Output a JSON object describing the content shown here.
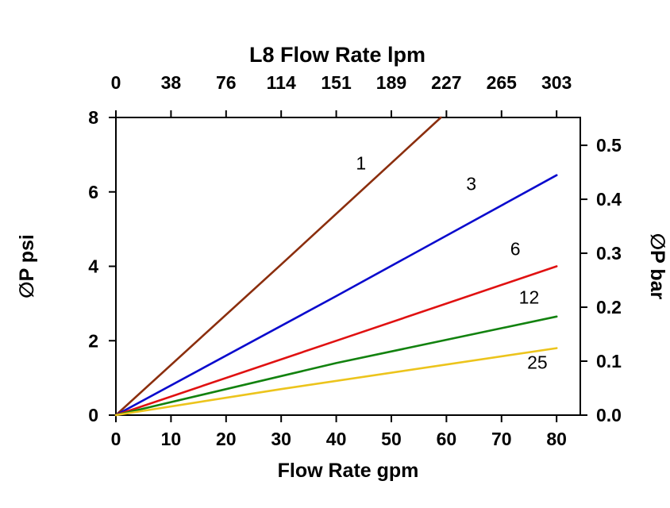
{
  "chart_data": {
    "type": "line",
    "title": "L8 Flow Rate lpm",
    "background": "#ffffff",
    "axes": {
      "bottom": {
        "label": "Flow Rate gpm",
        "ticks": [
          0,
          10,
          20,
          30,
          40,
          50,
          60,
          70,
          80
        ],
        "range": [
          0,
          84.3
        ]
      },
      "top": {
        "label": "L8 Flow Rate lpm",
        "tick_labels": [
          "0",
          "38",
          "76",
          "114",
          "151",
          "189",
          "227",
          "265",
          "303"
        ]
      },
      "left": {
        "label": "∅P psi",
        "ticks": [
          0,
          2,
          4,
          6,
          8
        ],
        "range": [
          0,
          8
        ]
      },
      "right": {
        "label": "∅P bar",
        "ticks": [
          0.0,
          0.1,
          0.2,
          0.3,
          0.4,
          0.5
        ],
        "psi_per_bar": 14.5038
      }
    },
    "series": [
      {
        "name": "1",
        "color": "#8b2e0d",
        "x": [
          0,
          30,
          59
        ],
        "y": [
          0,
          4.05,
          8.0
        ],
        "label_pos": [
          44.5,
          6.6
        ]
      },
      {
        "name": "3",
        "color": "#0a0acd",
        "x": [
          0,
          40,
          80
        ],
        "y": [
          0,
          3.2,
          6.45
        ],
        "label_pos": [
          64.5,
          6.05
        ]
      },
      {
        "name": "6",
        "color": "#e01111",
        "x": [
          0,
          40,
          80
        ],
        "y": [
          0,
          2.0,
          4.0
        ],
        "label_pos": [
          72.5,
          4.3
        ]
      },
      {
        "name": "12",
        "color": "#12820f",
        "x": [
          0,
          40,
          80
        ],
        "y": [
          0,
          1.4,
          2.65
        ],
        "label_pos": [
          75.0,
          3.0
        ]
      },
      {
        "name": "25",
        "color": "#ecc41c",
        "x": [
          0,
          30,
          80
        ],
        "y": [
          0,
          0.7,
          1.8
        ],
        "label_pos": [
          76.5,
          1.25
        ]
      }
    ],
    "grid": false,
    "legend": "inline-labels"
  }
}
